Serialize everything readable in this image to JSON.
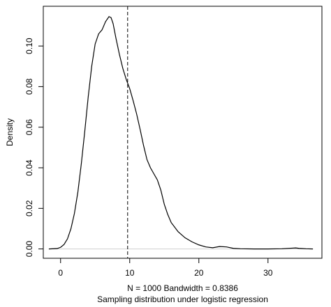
{
  "chart_data": {
    "type": "line",
    "title": "",
    "xlabel_line1": "N = 1000   Bandwidth = 0.8386",
    "xlabel_line2": "Sampling distribution under logistic regression",
    "ylabel": "Density",
    "xlim": [
      -2.5,
      37.8
    ],
    "ylim": [
      -0.0046,
      0.1196
    ],
    "x_ticks": [
      0,
      10,
      20,
      30
    ],
    "y_ticks": [
      0.0,
      0.02,
      0.04,
      0.06,
      0.08,
      0.1
    ],
    "y_tick_labels": [
      "0.00",
      "0.02",
      "0.04",
      "0.06",
      "0.08",
      "0.10"
    ],
    "vline_x": 9.7,
    "vline_style": "dashed",
    "zero_line": true,
    "grid": false,
    "series": [
      {
        "x": [
          -1.7,
          -0.5,
          0.0,
          0.5,
          1.0,
          1.5,
          2.0,
          2.5,
          3.0,
          3.5,
          4.0,
          4.5,
          5.0,
          5.5,
          6.0,
          6.5,
          7.0,
          7.3,
          7.6,
          8.0,
          8.5,
          9.0,
          9.5,
          10.0,
          10.5,
          11.0,
          11.5,
          12.0,
          12.5,
          13.0,
          13.5,
          14.0,
          14.5,
          15.0,
          15.5,
          16.0,
          17.0,
          18.0,
          19.0,
          20.0,
          21.0,
          22.0,
          23.0,
          24.0,
          25.0,
          26.0,
          28.0,
          30.0,
          32.0,
          33.5,
          34.0,
          34.5,
          35.5,
          36.5
        ],
        "y": [
          0.0,
          0.0002,
          0.0008,
          0.0022,
          0.005,
          0.01,
          0.0175,
          0.028,
          0.042,
          0.058,
          0.075,
          0.09,
          0.101,
          0.106,
          0.108,
          0.112,
          0.1145,
          0.114,
          0.111,
          0.104,
          0.096,
          0.089,
          0.0835,
          0.079,
          0.073,
          0.0665,
          0.059,
          0.051,
          0.044,
          0.04,
          0.037,
          0.034,
          0.029,
          0.022,
          0.017,
          0.013,
          0.0085,
          0.0055,
          0.0035,
          0.002,
          0.001,
          0.0006,
          0.0012,
          0.001,
          0.0003,
          0.0001,
          0.0,
          0.0,
          0.0001,
          0.0004,
          0.0005,
          0.0003,
          0.0001,
          0.0
        ]
      }
    ]
  }
}
